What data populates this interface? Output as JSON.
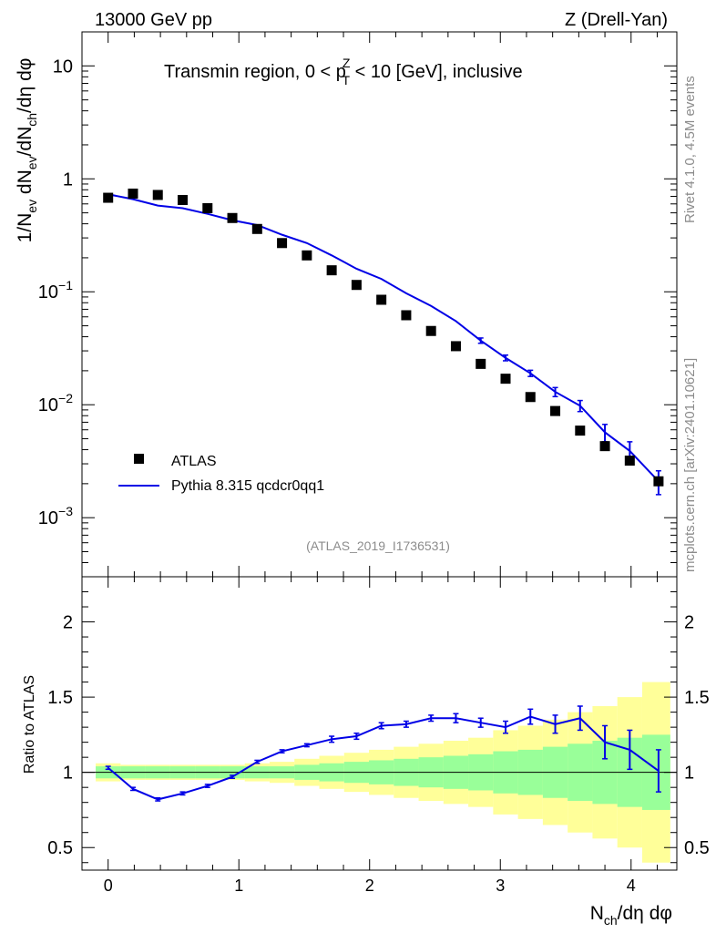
{
  "header": {
    "left": "13000 GeV pp",
    "right": "Z (Drell-Yan)"
  },
  "side_labels": {
    "rivet": "Rivet 4.1.0,  4.5M events",
    "mcplots": "mcplots.cern.ch [arXiv:2401.10621]"
  },
  "colors": {
    "mc": "#0000e6",
    "data": "#000000",
    "band_inner": "#99ff99",
    "band_outer": "#ffff99"
  },
  "chart_data": [
    {
      "type": "scatter",
      "scale": "log",
      "title_text": "Transmin region, 0 < p",
      "title_sup": "Z",
      "title_sub": "T",
      "title_rest": " < 10 [GeV], inclusive",
      "watermark": "(ATLAS_2019_I1736531)",
      "ylabel": "1/N_ev dN_ev/dN_ch/dη dφ",
      "xlim": [
        -0.2,
        4.35
      ],
      "ylim": [
        0.0003,
        20
      ],
      "y_tick_labels": [
        "10",
        "1",
        "10^-1",
        "10^-2",
        "10^-3"
      ],
      "x": [
        0.0,
        0.19,
        0.38,
        0.57,
        0.76,
        0.95,
        1.14,
        1.33,
        1.52,
        1.71,
        1.9,
        2.09,
        2.28,
        2.47,
        2.66,
        2.85,
        3.04,
        3.23,
        3.42,
        3.61,
        3.8,
        3.99,
        4.21
      ],
      "series": [
        {
          "name": "ATLAS",
          "style": "markers",
          "values": [
            0.68,
            0.74,
            0.72,
            0.65,
            0.55,
            0.45,
            0.36,
            0.27,
            0.21,
            0.155,
            0.115,
            0.085,
            0.062,
            0.045,
            0.033,
            0.023,
            0.017,
            0.0117,
            0.0088,
            0.0059,
            0.0043,
            0.0032,
            0.0021
          ]
        },
        {
          "name": "Pythia 8.315 qcdcr0qq1",
          "style": "line",
          "values": [
            0.73,
            0.66,
            0.58,
            0.55,
            0.49,
            0.43,
            0.39,
            0.32,
            0.27,
            0.21,
            0.16,
            0.13,
            0.097,
            0.075,
            0.055,
            0.037,
            0.026,
            0.019,
            0.013,
            0.0098,
            0.0057,
            0.0039,
            0.0021
          ],
          "errors": [
            0,
            0,
            0,
            0,
            0,
            0,
            0,
            0,
            0,
            0,
            0,
            0,
            0,
            0,
            0,
            0.002,
            0.0015,
            0.0012,
            0.0012,
            0.0011,
            0.001,
            0.0008,
            0.0005
          ]
        }
      ]
    },
    {
      "type": "line",
      "ylabel": "Ratio to ATLAS",
      "xlabel": "N_ch/dη dφ",
      "xlim": [
        -0.2,
        4.35
      ],
      "ylim": [
        0.35,
        2.3
      ],
      "x_tick_labels": [
        "0",
        "1",
        "2",
        "3",
        "4"
      ],
      "y_tick_labels": [
        "2",
        "1.5",
        "1",
        "0.5"
      ],
      "reference": 1.0,
      "bin_edges": [
        -0.095,
        0.095,
        0.285,
        0.475,
        0.665,
        0.855,
        1.045,
        1.235,
        1.425,
        1.615,
        1.805,
        1.995,
        2.185,
        2.375,
        2.565,
        2.755,
        2.945,
        3.135,
        3.325,
        3.515,
        3.705,
        3.895,
        4.085,
        4.3
      ],
      "band_inner": [
        0.04,
        0.04,
        0.04,
        0.04,
        0.04,
        0.04,
        0.04,
        0.04,
        0.05,
        0.06,
        0.07,
        0.08,
        0.09,
        0.1,
        0.11,
        0.12,
        0.14,
        0.15,
        0.17,
        0.19,
        0.21,
        0.23,
        0.25
      ],
      "band_outer": [
        0.06,
        0.05,
        0.05,
        0.05,
        0.05,
        0.05,
        0.06,
        0.07,
        0.09,
        0.11,
        0.13,
        0.15,
        0.17,
        0.19,
        0.21,
        0.23,
        0.28,
        0.31,
        0.35,
        0.4,
        0.44,
        0.5,
        0.6
      ],
      "series": [
        {
          "name": "Pythia 8.315 qcdcr0qq1",
          "values": [
            1.03,
            0.89,
            0.82,
            0.86,
            0.91,
            0.97,
            1.07,
            1.14,
            1.18,
            1.22,
            1.24,
            1.31,
            1.32,
            1.36,
            1.36,
            1.33,
            1.3,
            1.37,
            1.32,
            1.36,
            1.2,
            1.15,
            1.01
          ],
          "errors": [
            0.01,
            0.01,
            0.01,
            0.01,
            0.01,
            0.01,
            0.01,
            0.01,
            0.01,
            0.02,
            0.02,
            0.02,
            0.02,
            0.02,
            0.03,
            0.03,
            0.04,
            0.05,
            0.06,
            0.08,
            0.11,
            0.13,
            0.14
          ]
        }
      ]
    }
  ]
}
